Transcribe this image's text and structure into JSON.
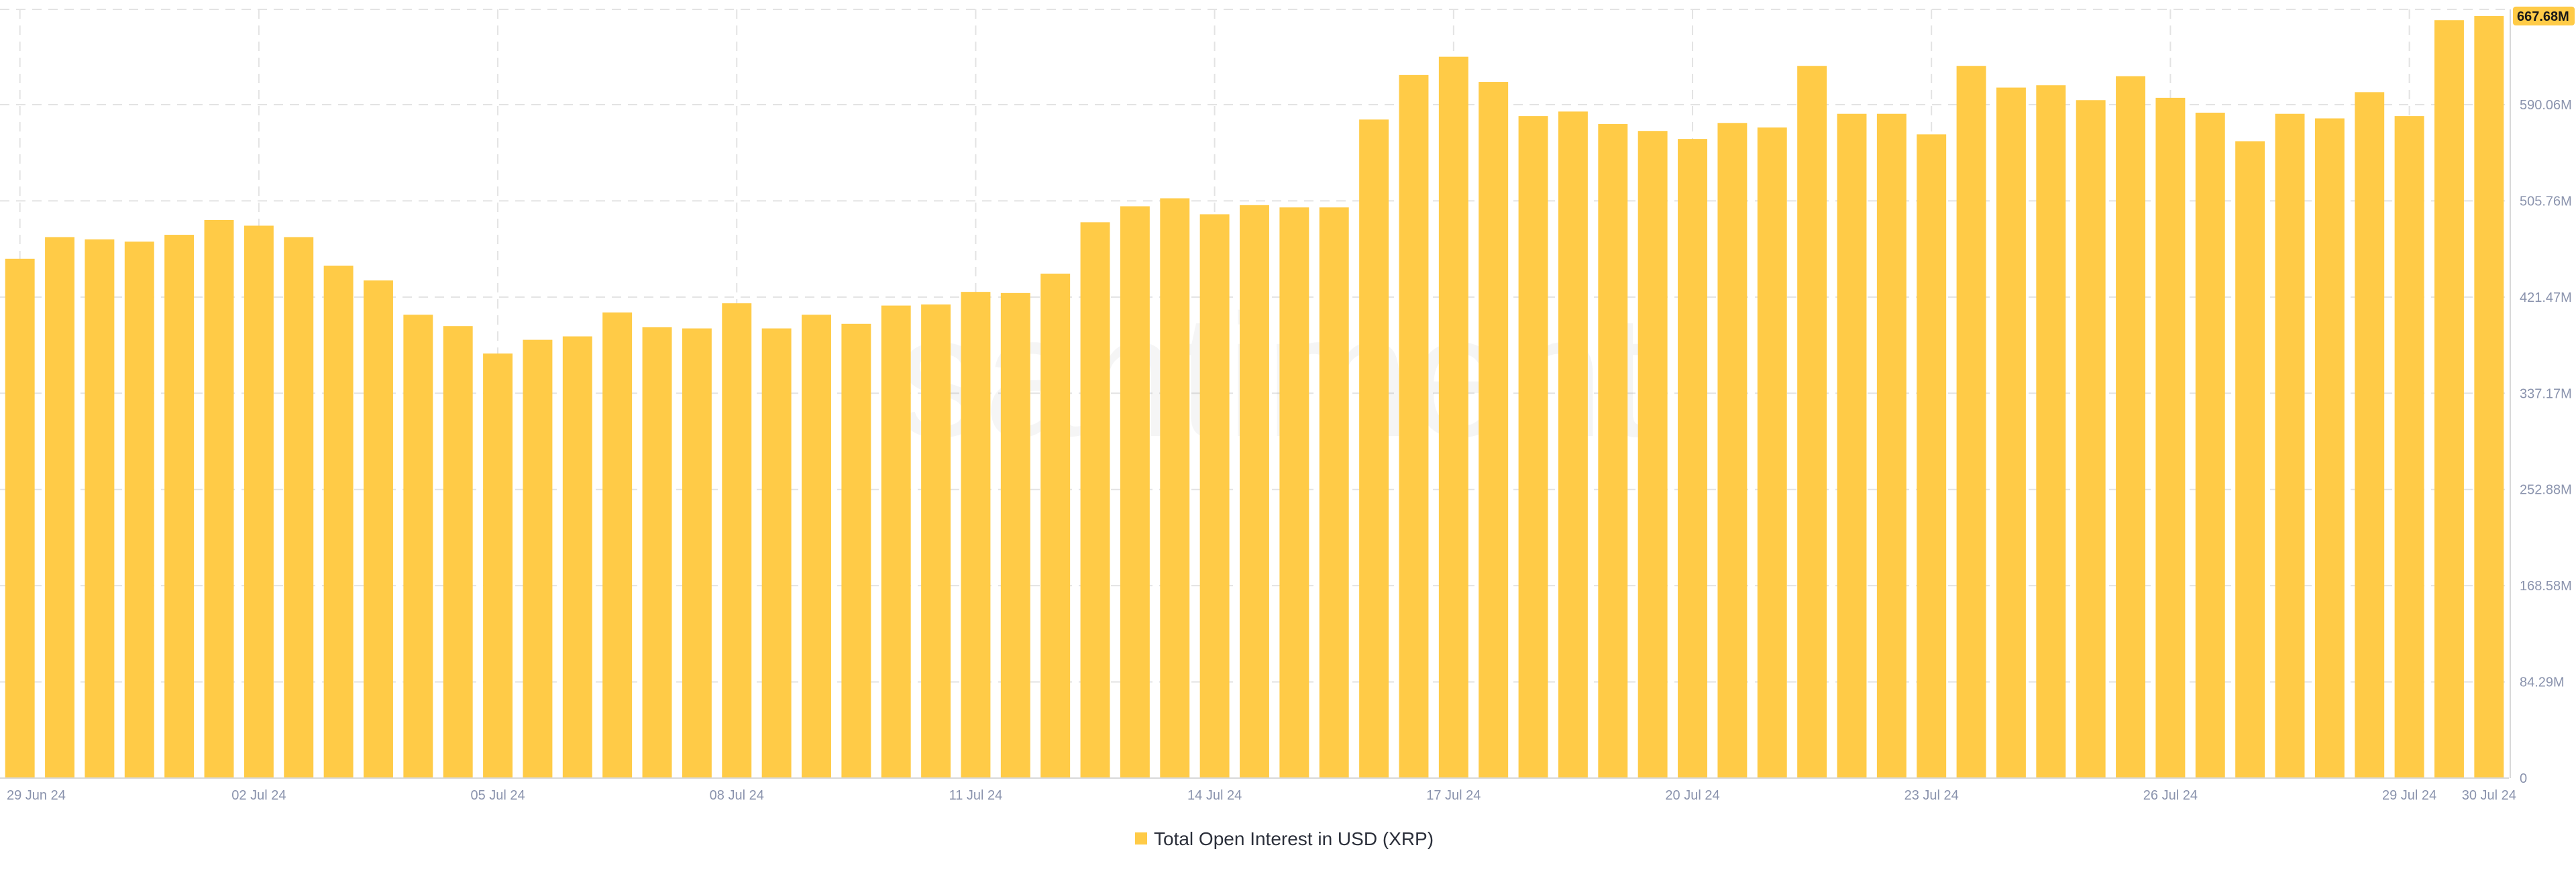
{
  "watermark": "santiment",
  "colors": {
    "bar": "#ffcb47",
    "badge": "#ffcb47",
    "grid": "#e3e3e3",
    "tick": "#8a93ad"
  },
  "current_value_badge": "667.68M",
  "chart_data": {
    "type": "bar",
    "title": "",
    "xlabel": "",
    "ylabel": "",
    "ylim": [
      0,
      673.5
    ],
    "y_ticks": [
      {
        "value": 0,
        "label": "0"
      },
      {
        "value": 84.29,
        "label": "84.29M"
      },
      {
        "value": 168.58,
        "label": "168.58M"
      },
      {
        "value": 252.88,
        "label": "252.88M"
      },
      {
        "value": 337.17,
        "label": "337.17M"
      },
      {
        "value": 421.47,
        "label": "421.47M"
      },
      {
        "value": 505.76,
        "label": "505.76M"
      },
      {
        "value": 590.06,
        "label": "590.06M"
      }
    ],
    "x_ticks": [
      {
        "index": 0,
        "label": "29 Jun 24"
      },
      {
        "index": 6,
        "label": "02 Jul 24"
      },
      {
        "index": 12,
        "label": "05 Jul 24"
      },
      {
        "index": 18,
        "label": "08 Jul 24"
      },
      {
        "index": 24,
        "label": "11 Jul 24"
      },
      {
        "index": 30,
        "label": "14 Jul 24"
      },
      {
        "index": 36,
        "label": "17 Jul 24"
      },
      {
        "index": 42,
        "label": "20 Jul 24"
      },
      {
        "index": 48,
        "label": "23 Jul 24"
      },
      {
        "index": 54,
        "label": "26 Jul 24"
      },
      {
        "index": 60,
        "label": "29 Jul 24"
      },
      {
        "index": 62,
        "label": "30 Jul 24"
      }
    ],
    "legend": {
      "position": "bottom-center",
      "entries": [
        "Total Open Interest in USD (XRP)"
      ]
    },
    "grid": true,
    "series": [
      {
        "name": "Total Open Interest in USD (XRP)",
        "values": [
          455,
          474,
          472,
          470,
          476,
          489,
          484,
          474,
          449,
          436,
          406,
          396,
          372,
          384,
          387,
          408,
          395,
          394,
          416,
          394,
          406,
          398,
          414,
          415,
          426,
          425,
          442,
          487,
          501,
          508,
          494,
          502,
          500,
          500,
          577,
          616,
          632,
          610,
          580,
          584,
          573,
          567,
          560,
          574,
          570,
          624,
          582,
          582,
          564,
          624,
          605,
          607,
          594,
          615,
          596,
          583,
          558,
          582,
          578,
          601,
          580,
          664,
          667.68
        ]
      }
    ]
  }
}
